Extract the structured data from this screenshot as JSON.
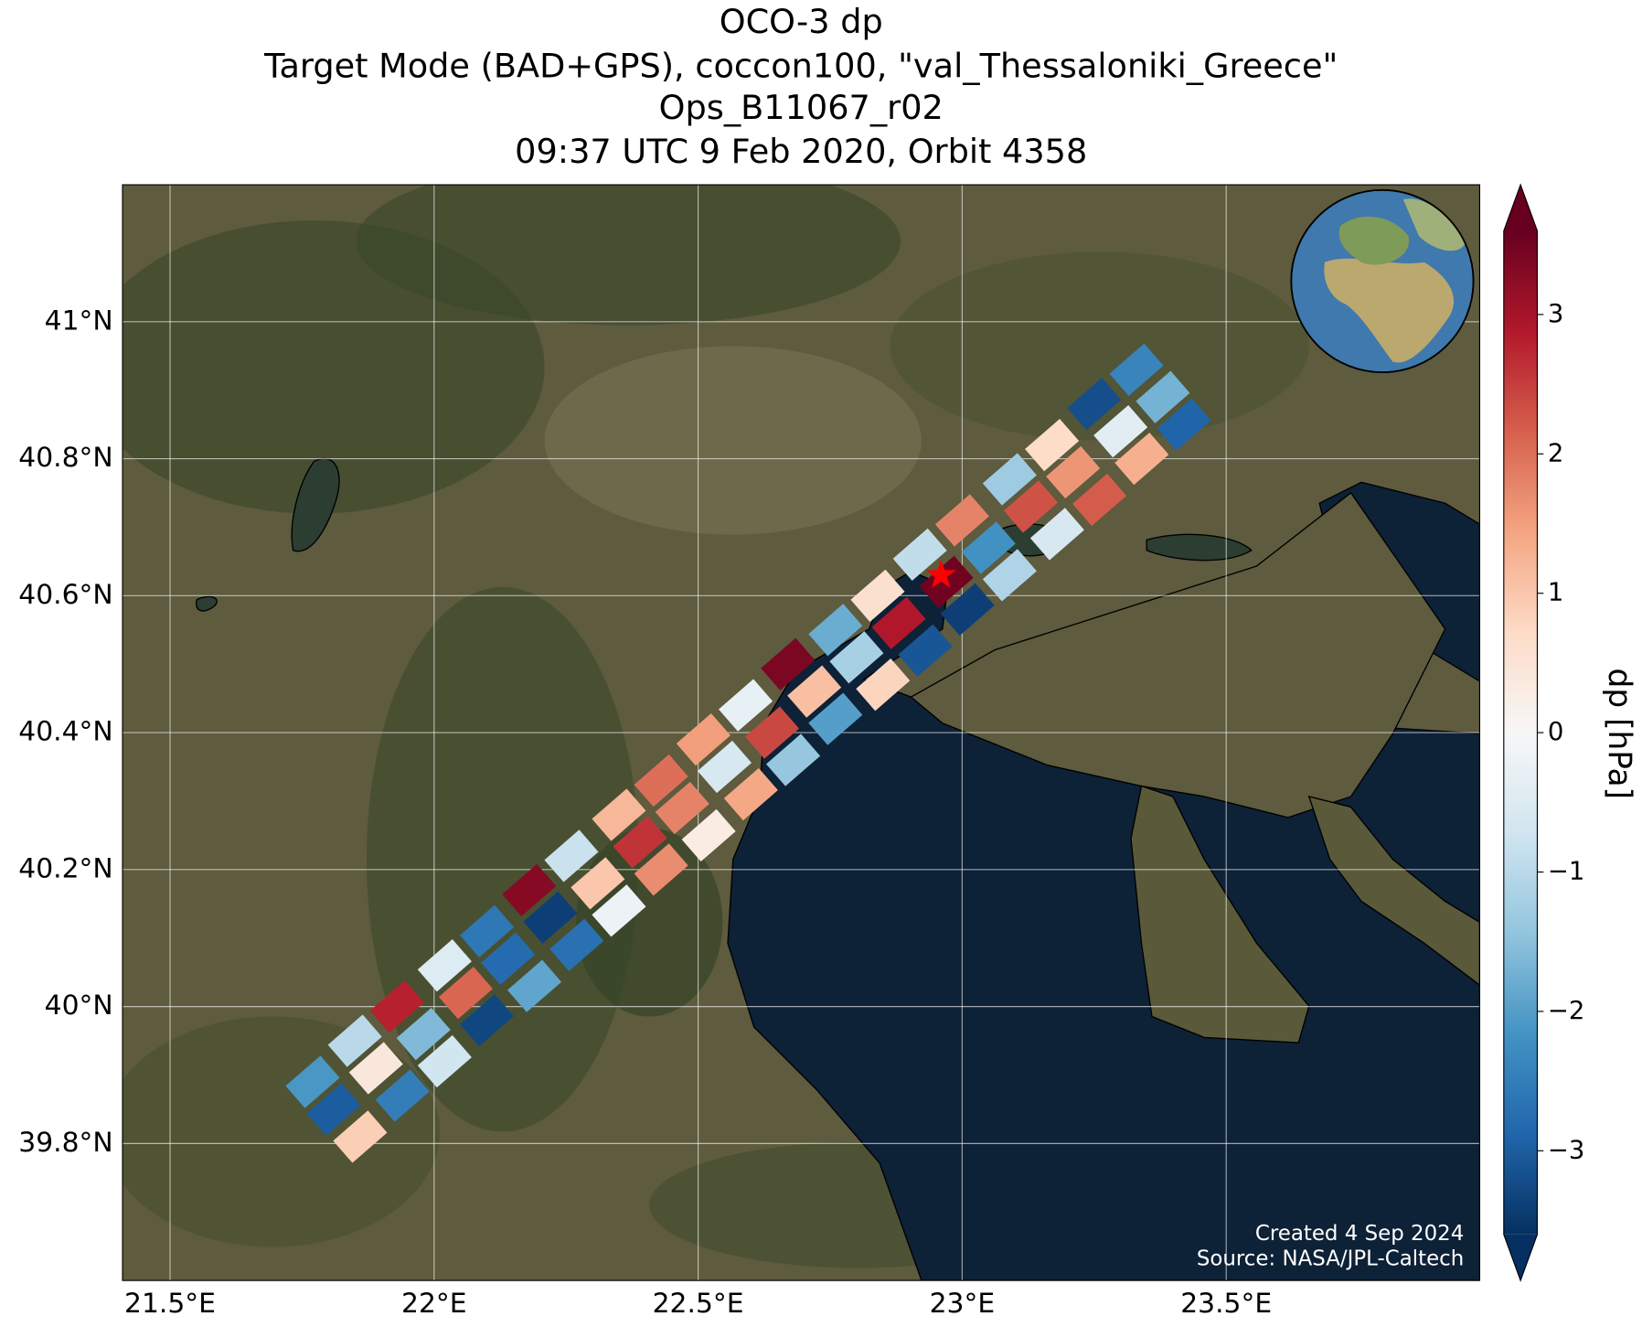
{
  "chart_data": {
    "type": "map",
    "title": [
      "OCO-3 dp",
      "Target Mode (BAD+GPS), coccon100, \"val_Thessaloniki_Greece\"",
      "Ops_B11067_r02",
      "09:37 UTC 9 Feb 2020, Orbit 4358"
    ],
    "xlim": [
      21.41,
      23.98
    ],
    "ylim": [
      39.6,
      41.2
    ],
    "xticks": [
      {
        "value": 21.5,
        "label": "21.5°E"
      },
      {
        "value": 22,
        "label": "22°E"
      },
      {
        "value": 22.5,
        "label": "22.5°E"
      },
      {
        "value": 23,
        "label": "23°E"
      },
      {
        "value": 23.5,
        "label": "23.5°E"
      }
    ],
    "yticks": [
      {
        "value": 39.8,
        "label": "39.8°N"
      },
      {
        "value": 40,
        "label": "40°N"
      },
      {
        "value": 40.2,
        "label": "40.2°N"
      },
      {
        "value": 40.4,
        "label": "40.4°N"
      },
      {
        "value": 40.6,
        "label": "40.6°N"
      },
      {
        "value": 40.8,
        "label": "40.8°N"
      },
      {
        "value": 41,
        "label": "41°N"
      }
    ],
    "grid": true,
    "x": [
      21.77,
      21.85,
      21.93,
      22.02,
      22.1,
      22.18,
      22.26,
      22.35,
      22.43,
      22.51,
      22.59,
      22.67,
      22.76,
      22.84,
      22.92,
      23.0,
      23.09,
      23.17,
      23.25,
      23.33,
      21.81,
      21.89,
      21.98,
      22.06,
      22.14,
      22.22,
      22.31,
      22.39,
      22.47,
      22.55,
      22.64,
      22.72,
      22.8,
      22.88,
      22.97,
      23.05,
      23.13,
      23.21,
      23.3,
      23.38,
      21.86,
      21.94,
      22.02,
      22.1,
      22.19,
      22.27,
      22.35,
      22.43,
      22.52,
      22.6,
      22.68,
      22.76,
      22.85,
      22.93,
      23.01,
      23.09,
      23.18,
      23.26,
      23.34,
      23.42
    ],
    "y": [
      39.89,
      39.95,
      40.0,
      40.06,
      40.11,
      40.17,
      40.22,
      40.28,
      40.33,
      40.39,
      40.44,
      40.5,
      40.55,
      40.6,
      40.66,
      40.71,
      40.77,
      40.82,
      40.88,
      40.93,
      39.85,
      39.91,
      39.96,
      40.02,
      40.07,
      40.13,
      40.18,
      40.24,
      40.29,
      40.35,
      40.4,
      40.46,
      40.51,
      40.56,
      40.62,
      40.67,
      40.73,
      40.78,
      40.84,
      40.89,
      39.81,
      39.87,
      39.92,
      39.98,
      40.03,
      40.09,
      40.14,
      40.2,
      40.25,
      40.31,
      40.36,
      40.42,
      40.47,
      40.52,
      40.58,
      40.63,
      40.69,
      40.74,
      40.8,
      40.85
    ],
    "values": [
      -2.1,
      -1.0,
      2.8,
      -0.5,
      -2.6,
      3.3,
      -0.8,
      1.2,
      2.0,
      1.5,
      -0.3,
      3.4,
      -1.8,
      0.6,
      -0.9,
      1.8,
      -1.3,
      0.7,
      -3.2,
      -2.4,
      -3.0,
      0.4,
      -1.6,
      2.1,
      -2.8,
      -3.4,
      1.0,
      2.6,
      1.8,
      -0.6,
      2.4,
      1.1,
      -1.2,
      2.9,
      3.5,
      -2.2,
      2.3,
      1.6,
      -0.4,
      -1.7,
      0.9,
      -2.5,
      -0.7,
      -3.3,
      -1.9,
      -2.7,
      -0.2,
      1.7,
      0.3,
      1.4,
      -1.4,
      -2.0,
      0.8,
      -3.1,
      -3.4,
      -1.1,
      -0.6,
      2.2,
      1.3,
      -2.9
    ],
    "target": {
      "x": 22.96,
      "y": 40.63,
      "color": "#ff0000"
    },
    "colormap": [
      "#053061",
      "#2166ac",
      "#4393c3",
      "#92c5de",
      "#d1e5f0",
      "#f7f7f7",
      "#fddbc7",
      "#f4a582",
      "#d6604d",
      "#b2182b",
      "#67001f"
    ],
    "clim": [
      -3.6,
      3.6
    ],
    "cticks": [
      {
        "value": -3,
        "label": "−3"
      },
      {
        "value": -2,
        "label": "−2"
      },
      {
        "value": -1,
        "label": "−1"
      },
      0,
      1,
      2,
      3
    ],
    "colorbar_label": "dp [hPa]",
    "annotations": [
      "Created 4 Sep 2024",
      "Source: NASA/JPL-Caltech"
    ]
  }
}
